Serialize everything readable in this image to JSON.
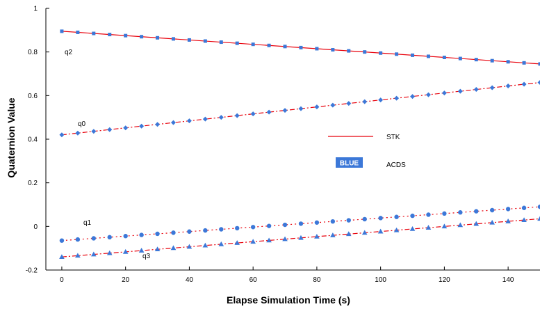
{
  "chart_data": {
    "type": "line",
    "xlabel": "Elapse Simulation Time (s)",
    "ylabel": "Quaternion Value",
    "xlim": [
      -5,
      150
    ],
    "ylim": [
      -0.2,
      1
    ],
    "xticks": [
      "0",
      "20",
      "40",
      "60",
      "80",
      "100",
      "120",
      "140"
    ],
    "yticks": [
      "-0.2",
      "0",
      "0.2",
      "0.4",
      "0.6",
      "0.8",
      "1"
    ],
    "grid": false,
    "colors": {
      "stk": "#e8000b",
      "acds": "#3c78d8"
    },
    "series": [
      {
        "name": "q2",
        "marker": "square",
        "start": 0.895,
        "end": 0.745
      },
      {
        "name": "q0",
        "marker": "diamond",
        "start": 0.42,
        "end": 0.66
      },
      {
        "name": "q1",
        "marker": "circle",
        "start": -0.065,
        "end": 0.09
      },
      {
        "name": "q3",
        "marker": "triangle",
        "start": -0.14,
        "end": 0.035
      }
    ],
    "sample_times": [
      0,
      5,
      10,
      15,
      20,
      25,
      30,
      35,
      40,
      45,
      50,
      55,
      60,
      65,
      70,
      75,
      80,
      85,
      90,
      95,
      100,
      105,
      110,
      115,
      120,
      125,
      130,
      135,
      140,
      145,
      150
    ],
    "legend": [
      {
        "label": "STK",
        "style": "line",
        "color": "#e8000b"
      },
      {
        "label": "ACDS",
        "badge": "BLUE",
        "style": "marker",
        "color": "#3c78d8"
      }
    ],
    "legend_position": "center-right"
  }
}
